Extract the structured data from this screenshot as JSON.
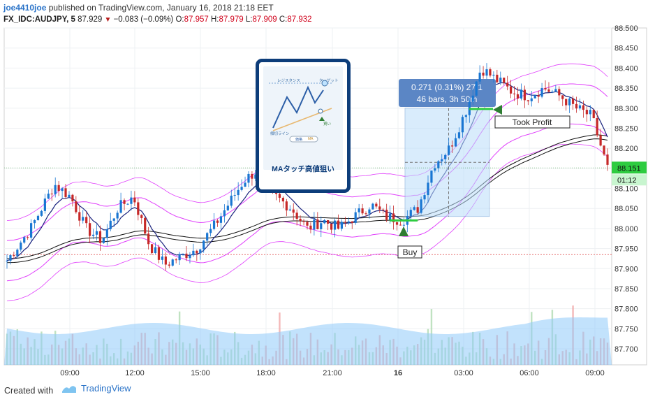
{
  "header": {
    "user": "joe4410joe",
    "published": " published on TradingView.com, January 16, 2018 21:18 EET",
    "symbol": "FX_IDC:AUDJPY, 5",
    "price": "87.929",
    "change": "−0.083 (−0.09%)",
    "o_label": "O:",
    "o_val": "87.957",
    "h_label": "H:",
    "h_val": "87.979",
    "l_label": "L:",
    "l_val": "87.909",
    "c_label": "C:",
    "c_val": "87.932"
  },
  "footer": {
    "created_with": "Created with",
    "brand": "TradingView"
  },
  "card": {
    "title": "MAタッチ高値狙い",
    "resistance": "レジスタンス",
    "target": "ターゲット",
    "trendline": "傾切ライン",
    "buy": "買い",
    "legend_price": "価格",
    "legend_ma": "MA"
  },
  "annotations": {
    "measure_line1": "0.271 (0.31%) 27.1",
    "measure_line2": "46 bars, 3h 50m",
    "took_profit": "Took Profit",
    "buy": "Buy"
  },
  "price_badges": {
    "current": "88.151",
    "countdown": "01:12"
  },
  "colors": {
    "up_candle": "#1976d2",
    "down_candle": "#c62828",
    "ma_fast": "#1a237e",
    "ma_band": "#e040fb",
    "ma_slow": "#111111",
    "volume_fill": "#90caf9",
    "measure_box": "#bbdefb",
    "badge_green": "#2ecc40"
  },
  "chart_data": {
    "type": "candlestick",
    "y_axis_ticks": [
      "88.500",
      "88.450",
      "88.400",
      "88.350",
      "88.300",
      "88.250",
      "88.200",
      "88.150",
      "88.100",
      "88.050",
      "88.000",
      "87.950",
      "87.900",
      "87.850",
      "87.800",
      "87.750",
      "87.700"
    ],
    "x_axis_ticks": [
      "09:00",
      "12:00",
      "15:00",
      "18:00",
      "21:00",
      "16",
      "03:00",
      "06:00",
      "09:00"
    ],
    "ylim": [
      87.66,
      88.5
    ],
    "close_path": [
      [
        0,
        87.92
      ],
      [
        6,
        88.0
      ],
      [
        12,
        88.11
      ],
      [
        16,
        88.08
      ],
      [
        20,
        88.0
      ],
      [
        24,
        87.97
      ],
      [
        28,
        88.05
      ],
      [
        32,
        88.08
      ],
      [
        36,
        87.96
      ],
      [
        40,
        87.91
      ],
      [
        44,
        87.93
      ],
      [
        48,
        87.95
      ],
      [
        52,
        88.0
      ],
      [
        56,
        88.06
      ],
      [
        60,
        88.12
      ],
      [
        64,
        88.15
      ],
      [
        68,
        88.08
      ],
      [
        72,
        88.05
      ],
      [
        76,
        88.0
      ],
      [
        80,
        88.02
      ],
      [
        84,
        88.0
      ],
      [
        88,
        88.03
      ],
      [
        92,
        88.06
      ],
      [
        96,
        88.03
      ],
      [
        100,
        88.02
      ],
      [
        104,
        88.05
      ],
      [
        108,
        88.16
      ],
      [
        112,
        88.2
      ],
      [
        116,
        88.29
      ],
      [
        120,
        88.4
      ],
      [
        124,
        88.37
      ],
      [
        128,
        88.34
      ],
      [
        132,
        88.33
      ],
      [
        136,
        88.35
      ],
      [
        140,
        88.33
      ],
      [
        144,
        88.3
      ],
      [
        148,
        88.28
      ],
      [
        152,
        88.15
      ]
    ],
    "last_price": 88.151,
    "reference_line": 87.935
  }
}
